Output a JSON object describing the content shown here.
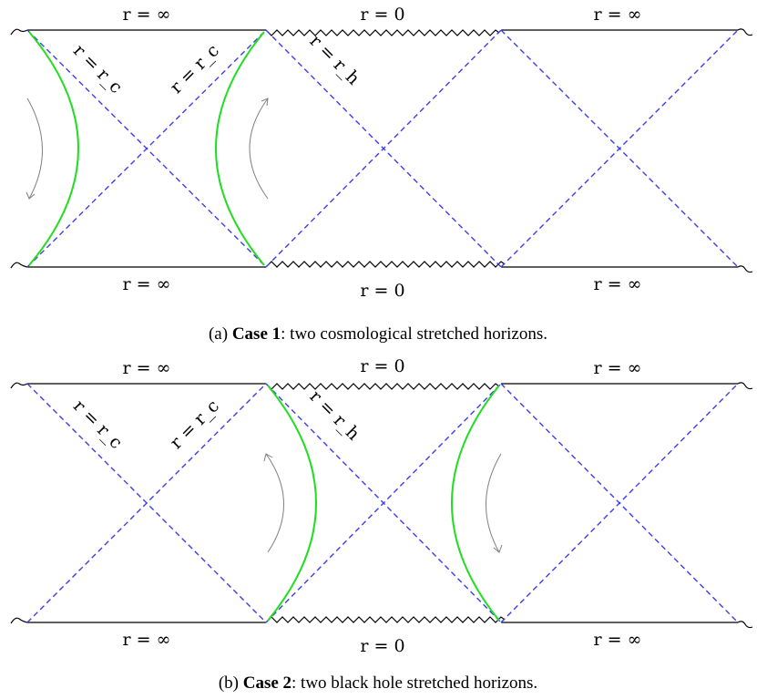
{
  "diagrams": [
    {
      "id": "case1",
      "top_labels": [
        "r = ∞",
        "r = 0",
        "r = ∞"
      ],
      "bottom_labels": [
        "r = ∞",
        "r = 0",
        "r = ∞"
      ],
      "diag_labels": [
        "r = r_c",
        "r = r_c",
        "r = r_h"
      ],
      "caption": {
        "prefix": "(a) ",
        "bold": "Case 1",
        "rest": ": two cosmological stretched horizons."
      },
      "stretched_horizons": "cosmological",
      "colors": {
        "horizon": "#3d3df0",
        "stretched": "#22dd22",
        "boundary": "#000000",
        "arrow": "#808080"
      }
    },
    {
      "id": "case2",
      "top_labels": [
        "r = ∞",
        "r = 0",
        "r = ∞"
      ],
      "bottom_labels": [
        "r = ∞",
        "r = 0",
        "r = ∞"
      ],
      "diag_labels": [
        "r = r_c",
        "r = r_c",
        "r = r_h"
      ],
      "caption": {
        "prefix": "(b) ",
        "bold": "Case 2",
        "rest": ": two black hole stretched horizons."
      },
      "stretched_horizons": "black hole",
      "colors": {
        "horizon": "#3d3df0",
        "stretched": "#22dd22",
        "boundary": "#000000",
        "arrow": "#808080"
      }
    }
  ]
}
